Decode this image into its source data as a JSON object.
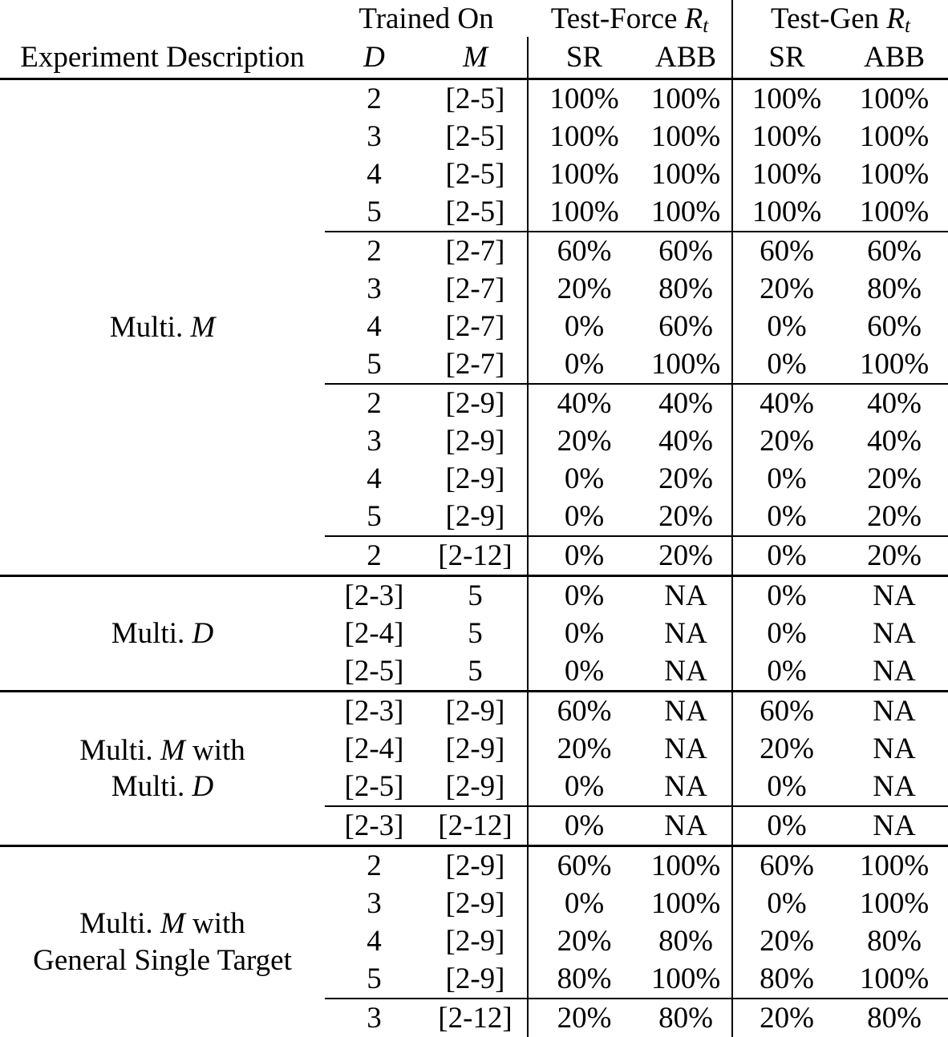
{
  "table": {
    "header": {
      "experiment_description": "Experiment Description",
      "trained_on": "Trained On",
      "test_force": {
        "prefix": "Test-Force",
        "symbol": "R",
        "subscript": "t"
      },
      "test_gen": {
        "prefix": "Test-Gen",
        "symbol": "R",
        "subscript": "t"
      },
      "d": "D",
      "m": "M",
      "sr_force": "SR",
      "abb_force": "ABB",
      "sr_gen": "SR",
      "abb_gen": "ABB"
    },
    "groups": [
      {
        "label": [
          [
            {
              "text": "Multi. "
            },
            {
              "text": "M",
              "italic": true
            }
          ]
        ],
        "subgroups": [
          {
            "rows": [
              [
                "2",
                "[2-5]",
                "100%",
                "100%",
                "100%",
                "100%"
              ],
              [
                "3",
                "[2-5]",
                "100%",
                "100%",
                "100%",
                "100%"
              ],
              [
                "4",
                "[2-5]",
                "100%",
                "100%",
                "100%",
                "100%"
              ],
              [
                "5",
                "[2-5]",
                "100%",
                "100%",
                "100%",
                "100%"
              ]
            ]
          },
          {
            "rows": [
              [
                "2",
                "[2-7]",
                "60%",
                "60%",
                "60%",
                "60%"
              ],
              [
                "3",
                "[2-7]",
                "20%",
                "80%",
                "20%",
                "80%"
              ],
              [
                "4",
                "[2-7]",
                "0%",
                "60%",
                "0%",
                "60%"
              ],
              [
                "5",
                "[2-7]",
                "0%",
                "100%",
                "0%",
                "100%"
              ]
            ]
          },
          {
            "rows": [
              [
                "2",
                "[2-9]",
                "40%",
                "40%",
                "40%",
                "40%"
              ],
              [
                "3",
                "[2-9]",
                "20%",
                "40%",
                "20%",
                "40%"
              ],
              [
                "4",
                "[2-9]",
                "0%",
                "20%",
                "0%",
                "20%"
              ],
              [
                "5",
                "[2-9]",
                "0%",
                "20%",
                "0%",
                "20%"
              ]
            ]
          },
          {
            "rows": [
              [
                "2",
                "[2-12]",
                "0%",
                "20%",
                "0%",
                "20%"
              ]
            ]
          }
        ]
      },
      {
        "label": [
          [
            {
              "text": "Multi. "
            },
            {
              "text": "D",
              "italic": true
            }
          ]
        ],
        "subgroups": [
          {
            "rows": [
              [
                "[2-3]",
                "5",
                "0%",
                "NA",
                "0%",
                "NA"
              ],
              [
                "[2-4]",
                "5",
                "0%",
                "NA",
                "0%",
                "NA"
              ],
              [
                "[2-5]",
                "5",
                "0%",
                "NA",
                "0%",
                "NA"
              ]
            ]
          }
        ]
      },
      {
        "label": [
          [
            {
              "text": "Multi. "
            },
            {
              "text": "M",
              "italic": true
            },
            {
              "text": " with"
            }
          ],
          [
            {
              "text": "Multi. "
            },
            {
              "text": "D",
              "italic": true
            }
          ]
        ],
        "subgroups": [
          {
            "rows": [
              [
                "[2-3]",
                "[2-9]",
                "60%",
                "NA",
                "60%",
                "NA"
              ],
              [
                "[2-4]",
                "[2-9]",
                "20%",
                "NA",
                "20%",
                "NA"
              ],
              [
                "[2-5]",
                "[2-9]",
                "0%",
                "NA",
                "0%",
                "NA"
              ]
            ]
          },
          {
            "rows": [
              [
                "[2-3]",
                "[2-12]",
                "0%",
                "NA",
                "0%",
                "NA"
              ]
            ]
          }
        ]
      },
      {
        "label": [
          [
            {
              "text": "Multi. "
            },
            {
              "text": "M",
              "italic": true
            },
            {
              "text": " with"
            }
          ],
          [
            {
              "text": "General Single Target"
            }
          ]
        ],
        "subgroups": [
          {
            "rows": [
              [
                "2",
                "[2-9]",
                "60%",
                "100%",
                "60%",
                "100%"
              ],
              [
                "3",
                "[2-9]",
                "0%",
                "100%",
                "0%",
                "100%"
              ],
              [
                "4",
                "[2-9]",
                "20%",
                "80%",
                "20%",
                "80%"
              ],
              [
                "5",
                "[2-9]",
                "80%",
                "100%",
                "80%",
                "100%"
              ]
            ]
          },
          {
            "rows": [
              [
                "3",
                "[2-12]",
                "20%",
                "80%",
                "20%",
                "80%"
              ]
            ]
          }
        ]
      }
    ]
  }
}
